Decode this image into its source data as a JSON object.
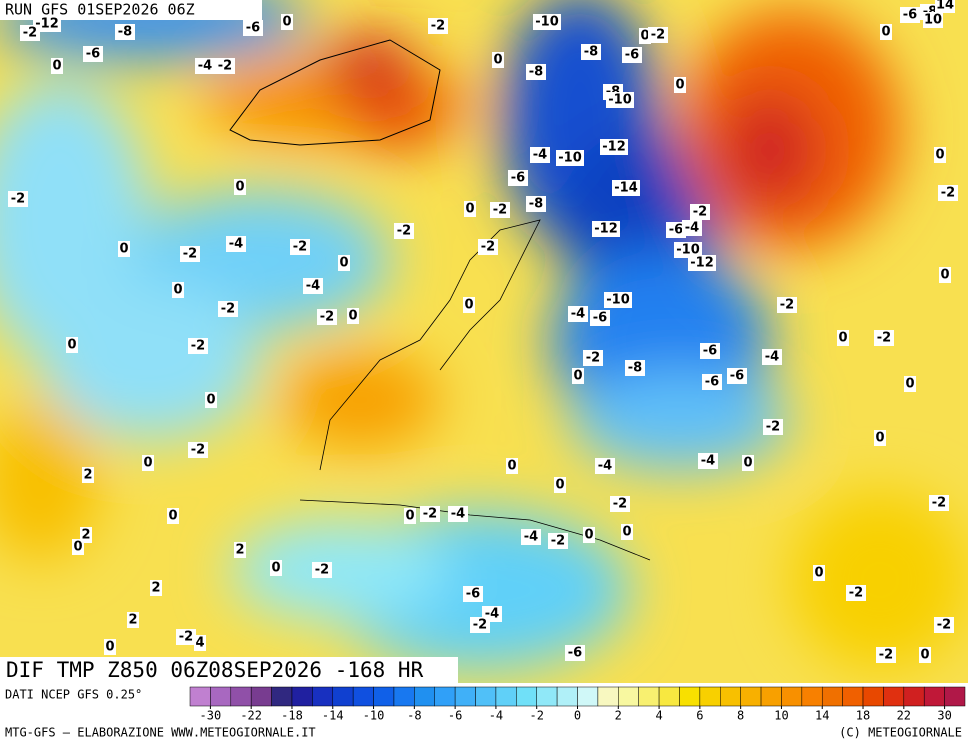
{
  "header": {
    "run": "RUN GFS 01SEP2026 06Z"
  },
  "map": {
    "title": "DIF TMP Z850 06Z08SEP2026 -168 HR",
    "labels": [
      "-12",
      "-2",
      "-8",
      "-6",
      "0",
      "-4",
      "-2",
      "-6",
      "0",
      "-2",
      "-10",
      "-8",
      "-6",
      "0",
      "-2",
      "0",
      "-8",
      "-8",
      "-10",
      "0",
      "-4",
      "-10",
      "-12",
      "-6",
      "-14",
      "-8",
      "-2",
      "0",
      "0",
      "-2",
      "-12",
      "-2",
      "-6",
      "-4",
      "-10",
      "-12",
      "0",
      "-2",
      "-4",
      "-2",
      "-2",
      "-2",
      "0",
      "0",
      "-4",
      "-2",
      "-2",
      "0",
      "0",
      "-10",
      "-4",
      "-6",
      "-2",
      "0",
      "-2",
      "0",
      "0",
      "-2",
      "-2",
      "0",
      "-8",
      "-6",
      "-4",
      "-6",
      "-6",
      "0",
      "-2",
      "0",
      "0",
      "-2",
      "-2",
      "0",
      "0",
      "2",
      "0",
      "-4",
      "-4",
      "0",
      "0",
      "-2",
      "-2",
      "0",
      "0",
      "-2",
      "-4",
      "-4",
      "-2",
      "0",
      "0",
      "2",
      "0",
      "2",
      "0",
      "-2",
      "0",
      "2",
      "-2",
      "-6",
      "-4",
      "-2",
      "2",
      "-2",
      "-2",
      "4",
      "0",
      "-6",
      "-2",
      "0",
      "0",
      "-6",
      "-8",
      "10",
      "14"
    ]
  },
  "footer": {
    "source": "DATI NCEP GFS 0.25°",
    "credit": "MTG-GFS — ELABORAZIONE WWW.METEOGIORNALE.IT",
    "copyright": "(C) METEOGIORNALE"
  },
  "colorbar": {
    "colors": [
      "#c080d0",
      "#a868c0",
      "#9050a8",
      "#783c90",
      "#302880",
      "#2020a0",
      "#1830c0",
      "#1040d0",
      "#1050e0",
      "#1060e8",
      "#1878f0",
      "#2090f0",
      "#30a0f8",
      "#40b0f8",
      "#50c0f8",
      "#60d0f8",
      "#70e0f8",
      "#90e8f8",
      "#b0f0f8",
      "#d0f8f8",
      "#f8f8c0",
      "#f8f8a0",
      "#f8f070",
      "#f8e840",
      "#f8e000",
      "#f8d000",
      "#f8c000",
      "#f8b000",
      "#f8a000",
      "#f89000",
      "#f88000",
      "#f07000",
      "#f06000",
      "#e84800",
      "#e03010",
      "#d02020",
      "#c01838",
      "#b01848"
    ],
    "ticks": [
      -30,
      -22,
      -18,
      -14,
      -10,
      -8,
      -6,
      -4,
      -2,
      0,
      2,
      4,
      6,
      8,
      10,
      14,
      18,
      22,
      30
    ]
  }
}
